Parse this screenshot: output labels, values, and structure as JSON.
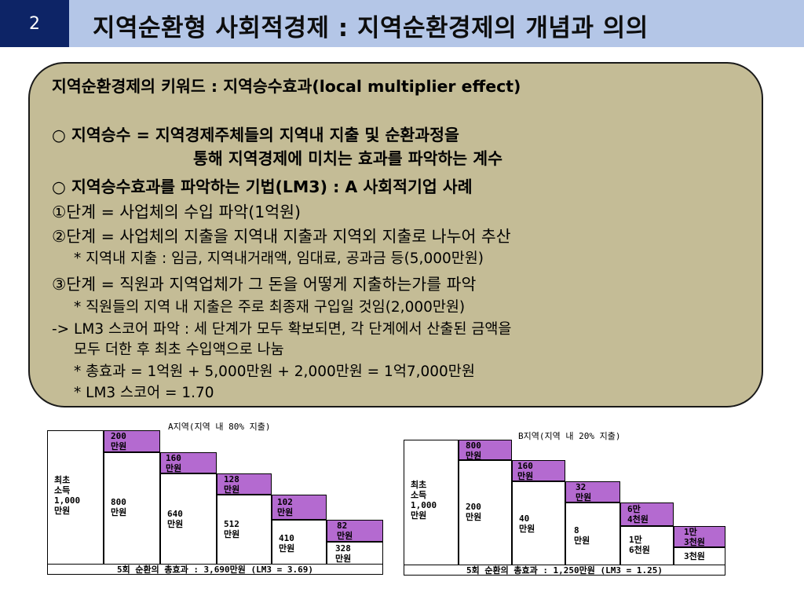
{
  "slide_number": "2",
  "title": "지역순환형 사회적경제 : 지역순환경제의 개념과 의의",
  "content": {
    "l1": "지역순환경제의 키워드 : 지역승수효과(local multiplier effect)",
    "l2": "○ 지역승수 = 지역경제주체들의 지역내 지출 및 순환과정을",
    "l3": "통해 지역경제에 미치는 효과를 파악하는 계수",
    "l4": "○ 지역승수효과를 파악하는 기법(LM3) : A 사회적기업 사례",
    "l5": "①단계 = 사업체의 수입 파악(1억원)",
    "l6": "②단계 = 사업체의 지출을 지역내 지출과 지역외 지출로 나누어 추산",
    "l7": "* 지역내 지출 : 임금, 지역내거래액, 임대료, 공과금 등(5,000만원)",
    "l8": "③단계 = 직원과 지역업체가 그 돈을 어떻게 지출하는가를 파악",
    "l9": "* 직원들의 지역 내 지출은 주로 최종재 구입일 것임(2,000만원)",
    "l10": "-> LM3 스코어 파악 : 세 단계가 모두 확보되면, 각 단계에서 산출된 금액을",
    "l11": "모두 더한 후 최초 수입액으로 나눔",
    "l12": "* 총효과 = 1억원 + 5,000만원 + 2,000만원 = 1억7,000만원",
    "l13": "* LM3 스코어 = 1.70"
  },
  "diagram_a": {
    "caption": "A지역(지역 내 80% 지출)",
    "c0": "최초\n소득\n1,000\n만원",
    "p1": "200\n만원",
    "w1": "800\n만원",
    "p2": "160\n만원",
    "w2": "640\n만원",
    "p3": "128\n만원",
    "w3": "512\n만원",
    "p4": "102\n만원",
    "w4": "410\n만원",
    "p5": "82\n만원",
    "w5": "328\n만원",
    "footer": "5회 순환의 총효과 : 3,690만원 (LM3 = 3.69)"
  },
  "diagram_b": {
    "caption": "B지역(지역 내 20% 지출)",
    "c0": "최초\n소득\n1,000\n만원",
    "p1": "800\n만원",
    "w1": "200\n만원",
    "p2": "160\n만원",
    "w2": "40\n만원",
    "p3": "32\n만원",
    "w3": "8\n만원",
    "p4": "6만\n4천원",
    "w4": "1만\n6천원",
    "p5": "1만\n3천원",
    "w5": "3천원",
    "footer": "5회 순환의 총효과 : 1,250만원 (LM3 = 1.25)"
  },
  "colors": {
    "navy": "#0d2466",
    "title_bg": "#b4c6e7",
    "box_bg": "#c4bc96",
    "purple": "#b46ad0"
  }
}
